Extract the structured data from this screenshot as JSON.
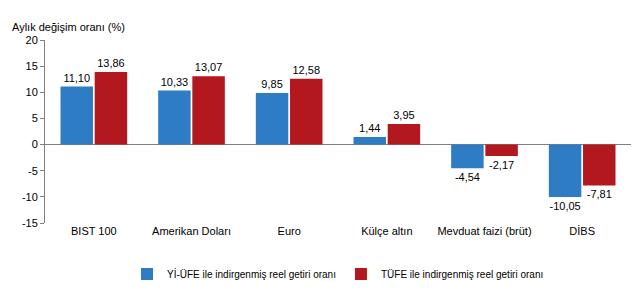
{
  "chart_data": {
    "type": "bar",
    "ylabel": "Aylık değişim oranı (%)",
    "categories": [
      "BIST 100",
      "Amerikan Doları",
      "Euro",
      "Külçe altın",
      "Mevduat faizi (brüt)",
      "DİBS"
    ],
    "series": [
      {
        "name": "Yİ-ÜFE ile indirgenmiş reel getiri oranı",
        "color": "#2e7dc4",
        "values": [
          11.1,
          10.33,
          9.85,
          1.44,
          -4.54,
          -10.05
        ],
        "value_labels": [
          "11,10",
          "10,33",
          "9,85",
          "1,44",
          "-4,54",
          "-10,05"
        ]
      },
      {
        "name": "TÜFE ile indirgenmiş reel getiri oranı",
        "color": "#b3181e",
        "values": [
          13.86,
          13.07,
          12.58,
          3.95,
          -2.17,
          -7.81
        ],
        "value_labels": [
          "13,86",
          "13,07",
          "12,58",
          "3,95",
          "-2,17",
          "-7,81"
        ]
      }
    ],
    "ylim": [
      -15,
      20
    ],
    "yticks": [
      -15,
      -10,
      -5,
      0,
      5,
      10,
      15,
      20
    ],
    "grid": false,
    "legend": "bottom",
    "data_labels": true
  }
}
